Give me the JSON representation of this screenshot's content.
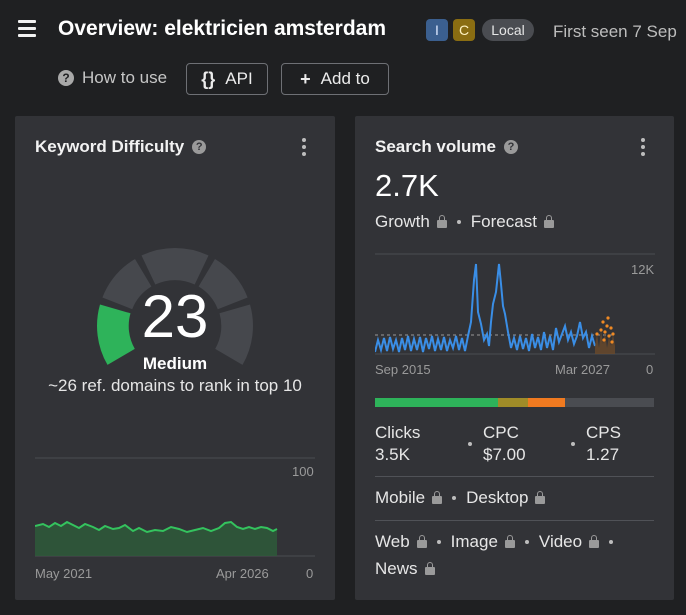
{
  "header": {
    "title": "Overview: elektricien amsterdam",
    "badges": {
      "informational": "I",
      "commercial": "C",
      "local": "Local"
    },
    "first_seen": "First seen 7 Sep",
    "how_to_use": "How to use",
    "api_label": "API",
    "api_icon": "{}",
    "add_to_label": "Add to",
    "add_icon": "+"
  },
  "keyword_difficulty": {
    "title": "Keyword Difficulty",
    "value": "23",
    "label": "Medium",
    "description": "~26 ref. domains to rank in top 10",
    "gauge_color": "#2eb35a",
    "history_chart": {
      "ymax_label": "100",
      "ymin_label": "0",
      "x_start": "May 2021",
      "x_end": "Apr 2026"
    }
  },
  "search_volume": {
    "title": "Search volume",
    "value": "2.7K",
    "growth_label": "Growth",
    "forecast_label": "Forecast",
    "chart": {
      "ymax_label": "12K",
      "ymin_label": "0",
      "x_start": "Sep 2015",
      "x_end": "Mar 2027",
      "line_color": "#3a8ee6",
      "forecast_color": "#f08a24"
    },
    "intent_bar": [
      {
        "color": "#2eb35a",
        "share": 0.44
      },
      {
        "color": "#a08c28",
        "share": 0.11
      },
      {
        "color": "#f07a20",
        "share": 0.13
      },
      {
        "color": "#4a4c51",
        "share": 0.32
      }
    ],
    "clicks_label": "Clicks",
    "clicks_value": "3.5K",
    "cpc_label": "CPC",
    "cpc_value": "$7.00",
    "cps_label": "CPS",
    "cps_value": "1.27",
    "devices": {
      "mobile": "Mobile",
      "desktop": "Desktop"
    },
    "serp_types": {
      "web": "Web",
      "image": "Image",
      "video": "Video",
      "news": "News"
    }
  }
}
